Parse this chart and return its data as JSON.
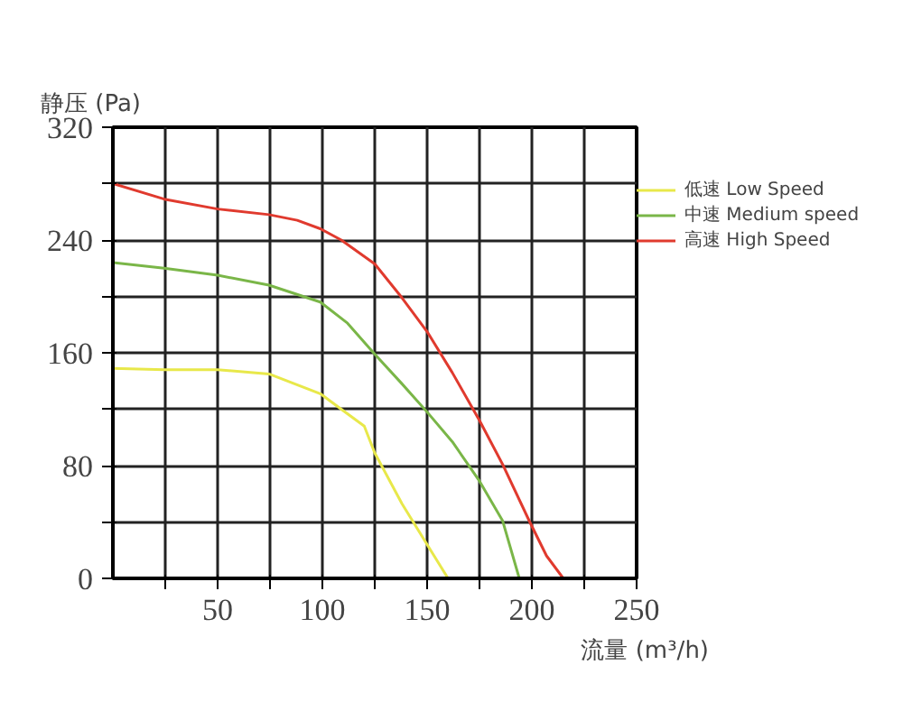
{
  "chart_data": {
    "type": "line",
    "xlabel": "流量 (m³/h)",
    "ylabel": "静压 (Pa)",
    "xlim": [
      0,
      250
    ],
    "ylim": [
      0,
      320
    ],
    "xticks": [
      {
        "value": 25,
        "label": null
      },
      50,
      {
        "value": 75,
        "label": null
      },
      100,
      {
        "value": 125,
        "label": null
      },
      150,
      {
        "value": 175,
        "label": null
      },
      200,
      {
        "value": 225,
        "label": null
      },
      250
    ],
    "yticks": [
      0,
      {
        "value": 40,
        "label": null
      },
      80,
      {
        "value": 120,
        "label": null
      },
      160,
      {
        "value": 200,
        "label": null
      },
      240,
      {
        "value": 280,
        "label": null
      },
      320
    ],
    "grid": true,
    "legend": "top right",
    "line_style": "solid",
    "series": [
      {
        "name": "低速 Low Speed",
        "color": "#e8e84a",
        "x": [
          0,
          24.5,
          50,
          74.5,
          99,
          109,
          120,
          125,
          138,
          150,
          160
        ],
        "values": [
          149,
          148,
          148,
          145,
          131,
          120,
          108,
          89,
          53,
          24,
          0
        ]
      },
      {
        "name": "中速 Medium speed",
        "color": "#7ab648",
        "x": [
          0,
          24.5,
          50,
          74.5,
          99,
          112,
          125,
          138,
          150,
          162,
          175,
          186,
          194
        ],
        "values": [
          224,
          220,
          215,
          208,
          196,
          181,
          159,
          138,
          118,
          97,
          69,
          41,
          0
        ]
      },
      {
        "name": "高速 High Speed",
        "color": "#e03a2e",
        "x": [
          0,
          24.5,
          50,
          74.5,
          88,
          99,
          109,
          125,
          138,
          150,
          162,
          175,
          186,
          199,
          207,
          215
        ],
        "values": [
          280,
          269,
          262,
          258,
          254,
          248,
          240,
          223,
          199,
          175,
          146,
          112,
          81,
          40,
          16,
          0
        ]
      }
    ]
  }
}
